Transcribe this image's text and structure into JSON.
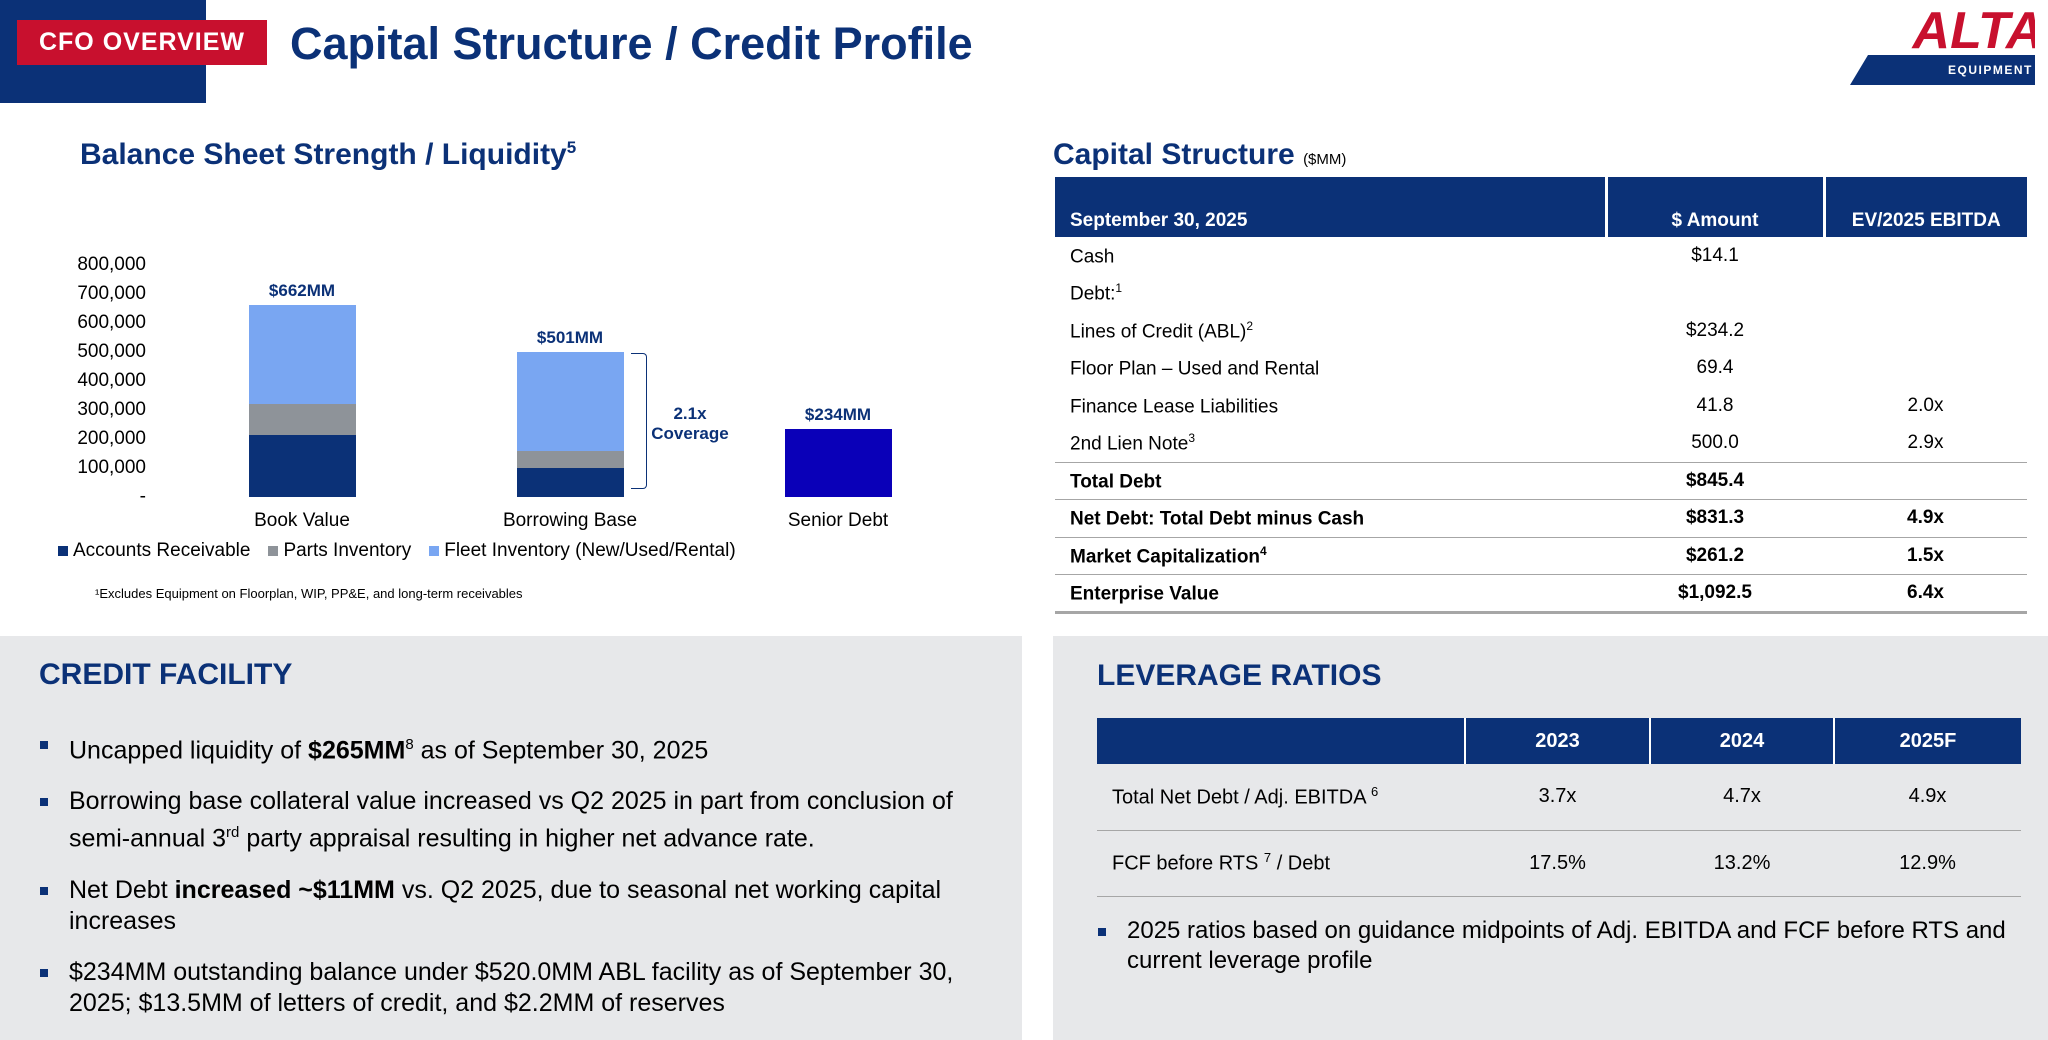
{
  "header": {
    "badge": "CFO OVERVIEW",
    "title": "Capital Structure / Credit Profile",
    "logo_text": "ALTA",
    "logo_sub": "EQUIPMENT GROUP"
  },
  "balance_sheet": {
    "title": "Balance Sheet Strength / Liquidity",
    "title_sup": "5",
    "coverage_line1": "2.1x",
    "coverage_line2": "Coverage",
    "footnote": "¹Excludes Equipment on Floorplan, WIP, PP&E, and long-term receivables"
  },
  "chart_data": {
    "type": "bar",
    "stacked": true,
    "categories": [
      "Book Value",
      "Borrowing Base",
      "Senior Debt"
    ],
    "series": [
      {
        "name": "Accounts Receivable",
        "color": "#0b3177",
        "values": [
          215000,
          100000,
          0
        ]
      },
      {
        "name": "Parts Inventory",
        "color": "#8e9399",
        "values": [
          105000,
          60000,
          0
        ]
      },
      {
        "name": "Fleet Inventory (New/Used/Rental)",
        "color": "#79a6f2",
        "values": [
          342000,
          341000,
          0
        ]
      },
      {
        "name": "Senior Debt",
        "color": "#0a00b8",
        "values": [
          0,
          0,
          234000
        ],
        "legend": false
      }
    ],
    "data_labels": [
      "$662MM",
      "$501MM",
      "$234MM"
    ],
    "ylim": [
      0,
      800000
    ],
    "yticks": [
      "800,000",
      "700,000",
      "600,000",
      "500,000",
      "400,000",
      "300,000",
      "200,000",
      "100,000",
      "-"
    ]
  },
  "capital_structure": {
    "title": "Capital Structure",
    "unit": "($MM)",
    "headers": [
      "September 30, 2025",
      "$ Amount",
      "EV/2025 EBITDA"
    ],
    "rows": [
      {
        "label": "Cash",
        "sup": "",
        "amount": "$14.1",
        "multiple": "",
        "bold": false
      },
      {
        "label": "Debt:",
        "sup": "1",
        "amount": "",
        "multiple": "",
        "bold": false
      },
      {
        "label": "Lines of Credit (ABL)",
        "sup": "2",
        "amount": "$234.2",
        "multiple": "",
        "bold": false
      },
      {
        "label": "Floor Plan – Used and Rental",
        "sup": "",
        "amount": "69.4",
        "multiple": "",
        "bold": false
      },
      {
        "label": "Finance Lease Liabilities",
        "sup": "",
        "amount": "41.8",
        "multiple": "2.0x",
        "bold": false
      },
      {
        "label": "2nd Lien Note",
        "sup": "3",
        "amount": "500.0",
        "multiple": "2.9x",
        "bold": false
      },
      {
        "label": "Total Debt",
        "sup": "",
        "amount": "$845.4",
        "multiple": "",
        "bold": true
      },
      {
        "label": "Net Debt: Total Debt minus Cash",
        "sup": "",
        "amount": "$831.3",
        "multiple": "4.9x",
        "bold": true
      },
      {
        "label": "Market Capitalization",
        "sup": "4",
        "amount": "$261.2",
        "multiple": "1.5x",
        "bold": true
      },
      {
        "label": "Enterprise Value",
        "sup": "",
        "amount": "$1,092.5",
        "multiple": "6.4x",
        "bold": true
      }
    ]
  },
  "credit_facility": {
    "title": "CREDIT FACILITY",
    "b1_pre": "Uncapped liquidity of ",
    "b1_bold": "$265MM",
    "b1_sup": "8",
    "b1_post": " as of September 30, 2025",
    "b2_pre": "Borrowing base collateral value increased vs Q2 2025 in part from conclusion of semi-annual 3",
    "b2_sup": "rd",
    "b2_post": " party appraisal resulting in higher net advance rate.",
    "b3_pre": "Net Debt ",
    "b3_bold": "increased ~$11MM",
    "b3_post": " vs. Q2 2025, due to seasonal net working capital increases",
    "b4": "$234MM outstanding balance under $520.0MM ABL facility as of September 30, 2025; $13.5MM of letters of credit, and $2.2MM of reserves"
  },
  "leverage": {
    "title": "LEVERAGE RATIOS",
    "years": [
      "2023",
      "2024",
      "2025F"
    ],
    "r1_label": "Total Net Debt / Adj. EBITDA ",
    "r1_sup": "6",
    "r1_values": [
      "3.7x",
      "4.7x",
      "4.9x"
    ],
    "r2_label": "FCF before RTS ",
    "r2_sup": "7",
    "r2_label_post": " / Debt",
    "r2_values": [
      "17.5%",
      "13.2%",
      "12.9%"
    ],
    "note": "2025 ratios based on guidance midpoints of Adj. EBITDA and FCF before RTS and current leverage profile"
  }
}
